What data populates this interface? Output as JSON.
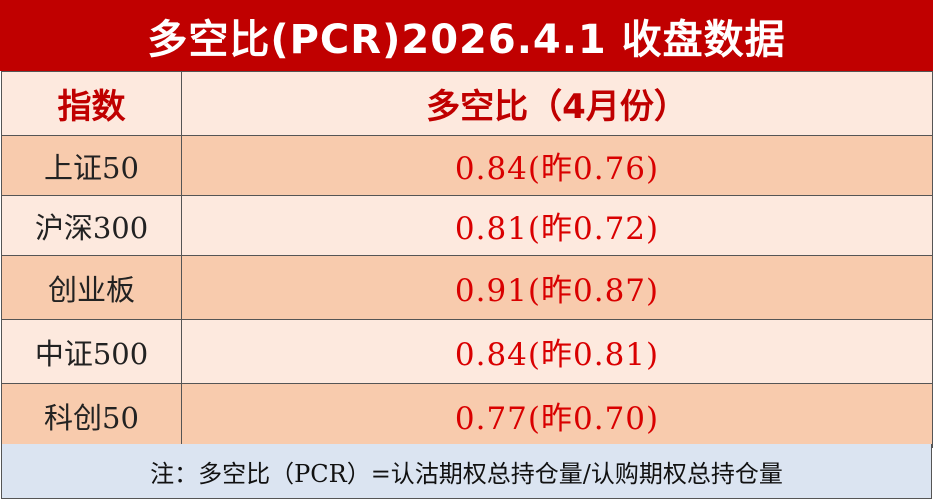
{
  "title": "多空比(PCR)2026.4.1 收盘数据",
  "header": {
    "index_label": "指数",
    "ratio_label": "多空比（4月份）"
  },
  "rows": [
    {
      "index": "上证50",
      "value": "0.84(昨0.76)"
    },
    {
      "index": "沪深300",
      "value": "0.81(昨0.72)"
    },
    {
      "index": "创业板",
      "value": "0.91(昨0.87)"
    },
    {
      "index": "中证500",
      "value": "0.84(昨0.81)"
    },
    {
      "index": "科创50",
      "value": "0.77(昨0.70)"
    }
  ],
  "note": "注：多空比（PCR）=认沽期权总持仓量/认购期权总持仓量",
  "colors": {
    "title_bg": "#c00000",
    "title_text": "#ffffff",
    "header_bg": "#fde9de",
    "header_text": "#c00000",
    "row_dark": "#f8cbad",
    "row_light": "#fde9de",
    "value_text": "#d90000",
    "note_bg": "#dbe4f1"
  }
}
